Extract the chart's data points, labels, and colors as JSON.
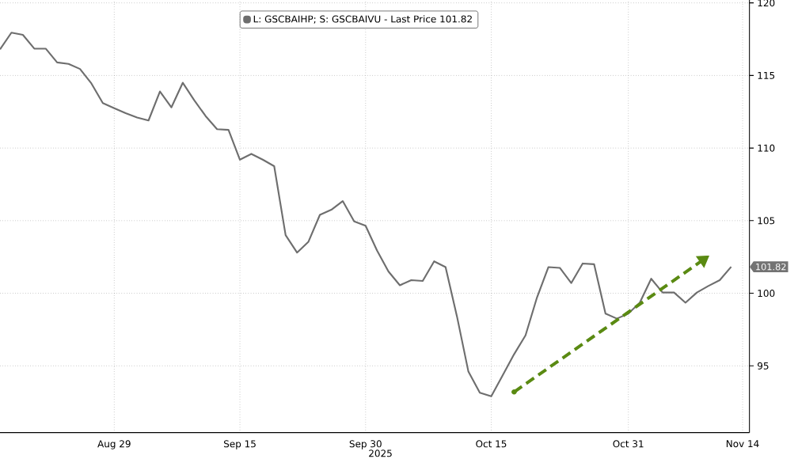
{
  "chart_data": {
    "type": "line",
    "categories": [
      null,
      null,
      null,
      null,
      null,
      null,
      null,
      null,
      null,
      null,
      "Aug 29",
      null,
      null,
      null,
      null,
      null,
      null,
      null,
      null,
      null,
      null,
      "Sep 15",
      null,
      null,
      null,
      null,
      null,
      null,
      null,
      null,
      null,
      null,
      "Sep 30",
      null,
      null,
      null,
      null,
      null,
      null,
      null,
      null,
      null,
      null,
      "Oct 15",
      null,
      null,
      null,
      null,
      null,
      null,
      null,
      null,
      null,
      null,
      null,
      "Oct 31",
      null,
      null,
      null,
      null,
      null,
      null,
      null,
      null,
      null,
      "Nov 14"
    ],
    "series": [
      {
        "name": "L: GSCBAIHP; S: GSCBAIVU - Last Price 101.82",
        "color": "#6e6e6e",
        "values": [
          116.8,
          117.95,
          117.8,
          116.85,
          116.85,
          115.9,
          115.8,
          115.45,
          114.45,
          113.1,
          112.75,
          112.4,
          112.1,
          111.9,
          113.9,
          112.8,
          114.5,
          113.3,
          112.2,
          111.3,
          111.25,
          109.2,
          109.6,
          109.2,
          108.75,
          104.0,
          102.8,
          103.55,
          105.4,
          105.75,
          106.35,
          104.95,
          104.65,
          102.95,
          101.5,
          100.55,
          100.9,
          100.85,
          102.2,
          101.8,
          98.4,
          94.6,
          93.15,
          92.9,
          94.35,
          95.8,
          97.1,
          99.7,
          101.8,
          101.75,
          100.7,
          102.05,
          102.0,
          98.6,
          98.25,
          98.6,
          99.35,
          101.0,
          100.05,
          100.05,
          99.35,
          100.05,
          100.5,
          100.9,
          101.82,
          null
        ]
      }
    ],
    "ylim": [
      90.4,
      120.2
    ],
    "yticks": [
      95,
      100,
      105,
      110,
      115,
      120
    ],
    "grid": true,
    "legend": "top",
    "line_style": "solid",
    "marker": "none",
    "annotations": [
      "2025",
      "101.82"
    ]
  }
}
